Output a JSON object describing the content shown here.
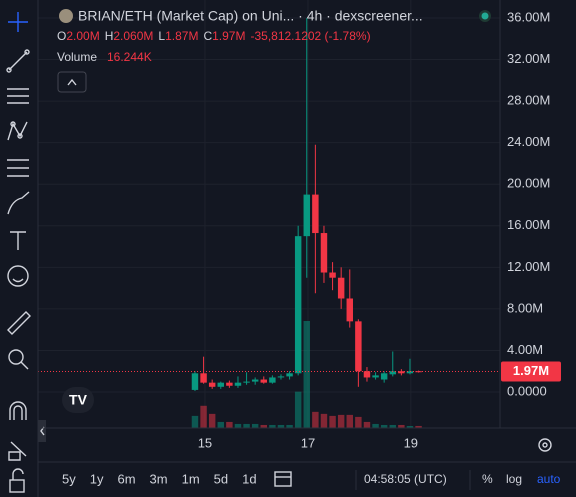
{
  "header": {
    "symbol_title": "BRIAN/ETH (Market Cap) on Uni... · 4h · dexscreener...",
    "ohlc": [
      {
        "key": "O",
        "value": "2.00M"
      },
      {
        "key": "H",
        "value": "2.060M"
      },
      {
        "key": "L",
        "value": "1.87M"
      },
      {
        "key": "C",
        "value": "1.97M"
      }
    ],
    "change": "-35,812.1202 (-1.78%)",
    "volume_label": "Volume",
    "volume_value": "16.244K"
  },
  "chart_data": {
    "type": "candlestick",
    "open": [
      200000,
      1800000,
      900000,
      500000,
      900000,
      600000,
      900000,
      1000000,
      1200000,
      900000,
      1400000,
      1500000,
      1800000,
      15000000,
      19000000,
      15300000,
      11500000,
      11000000,
      9000000,
      6800000,
      2000000,
      1400000,
      1200000,
      1700000,
      2000000,
      1800000,
      2000000
    ],
    "high": [
      2000000,
      3400000,
      1200000,
      1000000,
      1100000,
      1500000,
      1900000,
      1400000,
      1500000,
      1600000,
      1700000,
      2000000,
      16000000,
      36000000,
      23800000,
      16000000,
      12500000,
      12000000,
      11800000,
      7000000,
      2400000,
      1900000,
      2000000,
      3900000,
      2200000,
      3200000,
      2060000
    ],
    "low": [
      100000,
      800000,
      300000,
      300000,
      400000,
      400000,
      700000,
      700000,
      800000,
      800000,
      1200000,
      1200000,
      1600000,
      11000000,
      9500000,
      10500000,
      9800000,
      8000000,
      6200000,
      500000,
      1000000,
      1200000,
      900000,
      1500000,
      1600000,
      1700000,
      1870000
    ],
    "close": [
      1800000,
      900000,
      500000,
      900000,
      600000,
      900000,
      1000000,
      1200000,
      900000,
      1400000,
      1500000,
      1800000,
      15000000,
      19000000,
      15300000,
      11500000,
      11000000,
      9000000,
      6800000,
      2000000,
      1400000,
      1600000,
      1800000,
      2000000,
      1800000,
      2000000,
      1970000
    ],
    "volume": [
      96000,
      176000,
      112000,
      48000,
      48000,
      32000,
      32000,
      32000,
      24000,
      24000,
      24000,
      24000,
      288000,
      848000,
      128000,
      112000,
      96000,
      104000,
      104000,
      88000,
      48000,
      32000,
      24000,
      24000,
      24000,
      16000,
      16244
    ],
    "up_color": "#089981",
    "down_color": "#f23645",
    "ylim": [
      -3465000,
      37730000
    ],
    "yticks": [
      {
        "value": 0,
        "label": "0.0000"
      },
      {
        "value": 4000000,
        "label": "4.00M"
      },
      {
        "value": 8000000,
        "label": "8.00M"
      },
      {
        "value": 12000000,
        "label": "12.00M"
      },
      {
        "value": 16000000,
        "label": "16.00M"
      },
      {
        "value": 20000000,
        "label": "20.00M"
      },
      {
        "value": 24000000,
        "label": "24.00M"
      },
      {
        "value": 28000000,
        "label": "28.00M"
      },
      {
        "value": 32000000,
        "label": "32.00M"
      },
      {
        "value": 36000000,
        "label": "36.00M"
      }
    ],
    "xlim": [
      -17.44,
      35.47
    ],
    "xticks": [
      {
        "value": 1.16,
        "label": "15"
      },
      {
        "value": 13.14,
        "label": "17"
      },
      {
        "value": 25.1,
        "label": "19"
      }
    ],
    "grid": true,
    "last_price_label": "1.97M"
  },
  "footer": {
    "ranges": [
      "5y",
      "1y",
      "6m",
      "3m",
      "1m",
      "5d",
      "1d"
    ],
    "clock": "04:58:05 (UTC)",
    "percent": "%",
    "log": "log",
    "auto": "auto"
  }
}
